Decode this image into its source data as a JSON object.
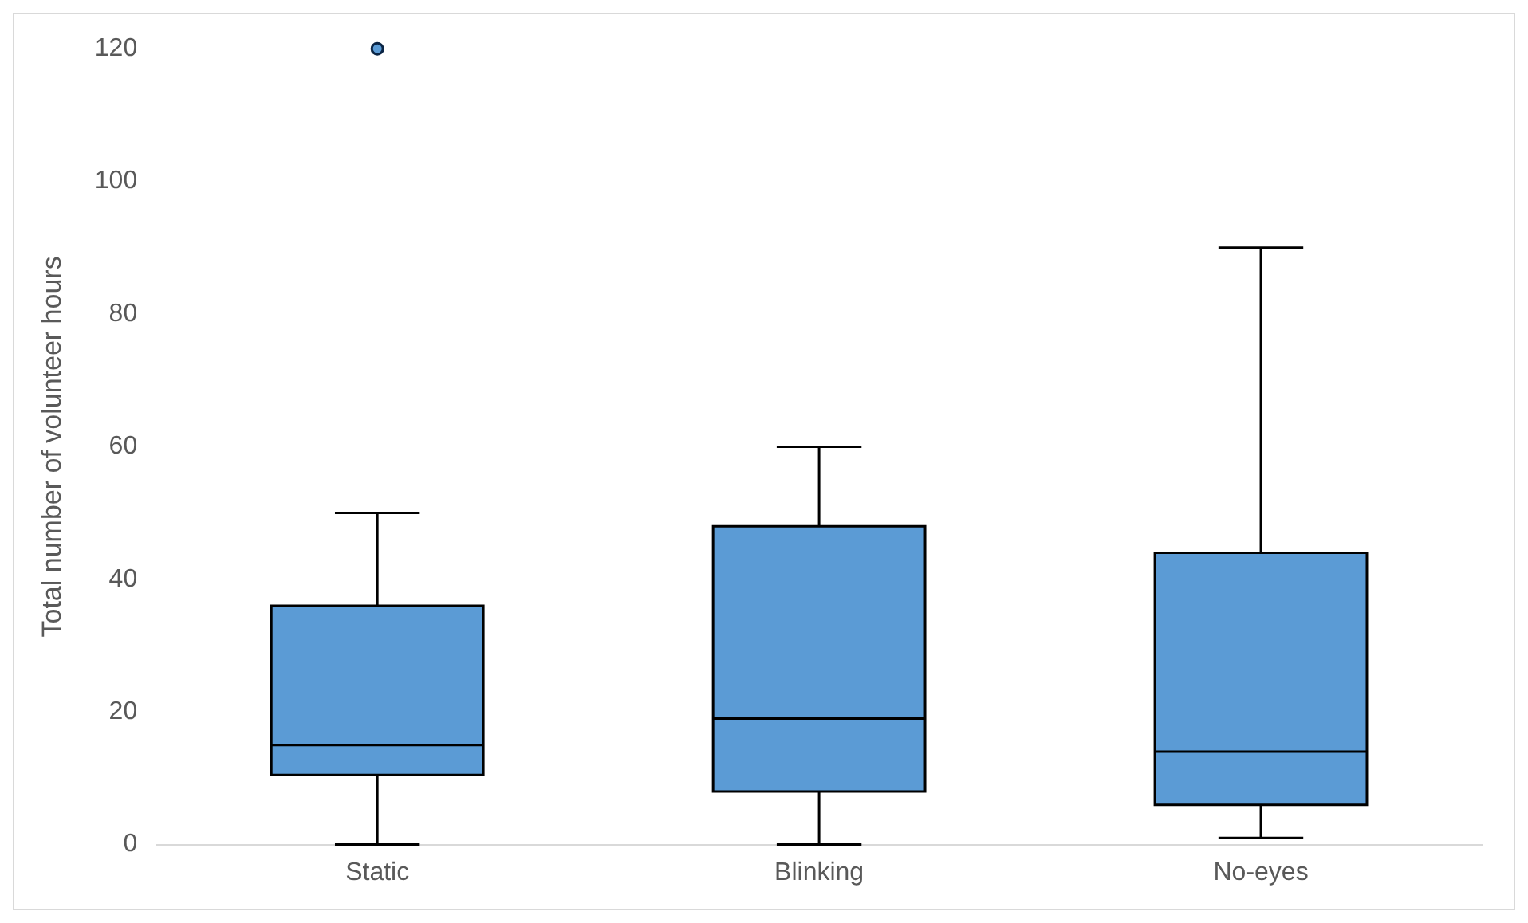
{
  "chart_data": {
    "type": "box",
    "ylabel": "Total number of volunteer hours",
    "categories": [
      "Static",
      "Blinking",
      "No-eyes"
    ],
    "boxes": [
      {
        "low": 0,
        "q1": 10.5,
        "median": 15,
        "q3": 36,
        "high": 50,
        "outliers": [
          120
        ]
      },
      {
        "low": 0,
        "q1": 8,
        "median": 19,
        "q3": 48,
        "high": 60
      },
      {
        "low": 1,
        "q1": 6,
        "median": 14,
        "q3": 44,
        "high": 90
      }
    ],
    "color": "#5b9bd5",
    "ylim": [
      0,
      120
    ],
    "yticks": [
      0,
      20,
      40,
      60,
      80,
      100,
      120
    ],
    "grid": false,
    "legend": false
  }
}
